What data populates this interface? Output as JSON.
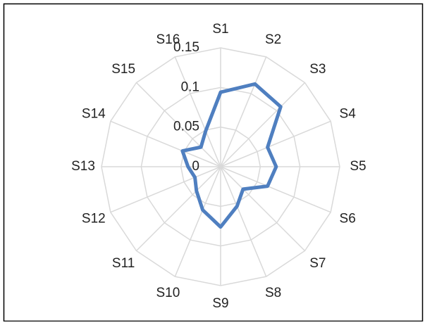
{
  "chart_data": {
    "type": "radar",
    "categories": [
      "S1",
      "S2",
      "S3",
      "S4",
      "S5",
      "S6",
      "S7",
      "S8",
      "S9",
      "S10",
      "S11",
      "S12",
      "S13",
      "S14",
      "S15",
      "S16"
    ],
    "series": [
      {
        "color": "#4f7fc0",
        "values": [
          0.094,
          0.113,
          0.107,
          0.064,
          0.07,
          0.064,
          0.04,
          0.054,
          0.076,
          0.059,
          0.043,
          0.035,
          0.041,
          0.052,
          0.035,
          0.049
        ]
      }
    ],
    "ylim": [
      0,
      0.15
    ],
    "yticks": [
      0,
      0.05,
      0.1,
      0.15
    ],
    "grid": true
  }
}
